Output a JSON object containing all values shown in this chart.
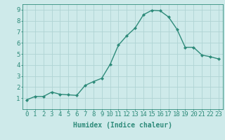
{
  "x": [
    0,
    1,
    2,
    3,
    4,
    5,
    6,
    7,
    8,
    9,
    10,
    11,
    12,
    13,
    14,
    15,
    16,
    17,
    18,
    19,
    20,
    21,
    22,
    23
  ],
  "y": [
    0.85,
    1.15,
    1.15,
    1.55,
    1.35,
    1.3,
    1.25,
    2.15,
    2.5,
    2.8,
    4.05,
    5.8,
    6.65,
    7.35,
    8.55,
    8.95,
    8.9,
    8.35,
    7.25,
    5.6,
    5.6,
    4.9,
    4.75,
    4.55
  ],
  "line_color": "#2e8b7a",
  "marker": "D",
  "marker_size": 2,
  "bg_color": "#ceeaea",
  "grid_color": "#afd4d4",
  "xlabel": "Humidex (Indice chaleur)",
  "xlim": [
    -0.5,
    23.5
  ],
  "ylim": [
    0,
    9.5
  ],
  "yticks": [
    1,
    2,
    3,
    4,
    5,
    6,
    7,
    8,
    9
  ],
  "xticks": [
    0,
    1,
    2,
    3,
    4,
    5,
    6,
    7,
    8,
    9,
    10,
    11,
    12,
    13,
    14,
    15,
    16,
    17,
    18,
    19,
    20,
    21,
    22,
    23
  ],
  "xlabel_fontsize": 7,
  "tick_fontsize": 6.5,
  "axis_color": "#2e8b7a",
  "line_width": 1.0
}
